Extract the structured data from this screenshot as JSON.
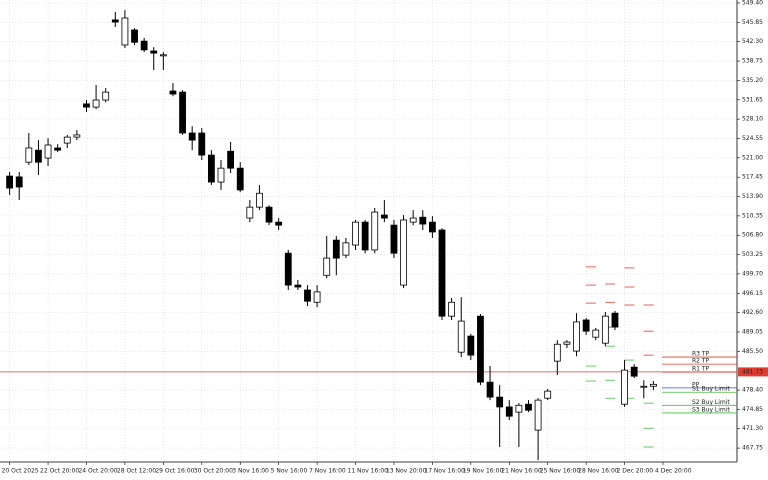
{
  "chart_data": {
    "type": "candlestick",
    "xlim": [
      -1,
      75.7
    ],
    "ylim": [
      465.2,
      549.95
    ],
    "grid": true,
    "bull_color": "#ffffff",
    "bear_color": "#000000",
    "xticks": [
      {
        "value": 0,
        "label": "20 Oct 2025"
      },
      {
        "value": 4,
        "label": "22 Oct 20:00"
      },
      {
        "value": 8,
        "label": "24 Oct 20:00"
      },
      {
        "value": 12,
        "label": "28 Oct 12:00"
      },
      {
        "value": 16,
        "label": "29 Oct 16:00"
      },
      {
        "value": 20,
        "label": "30 Oct 20:00"
      },
      {
        "value": 24,
        "label": "3 Nov 16:00"
      },
      {
        "value": 28,
        "label": "5 Nov 16:00"
      },
      {
        "value": 32,
        "label": "7 Nov 16:00"
      },
      {
        "value": 36,
        "label": "11 Nov 16:00"
      },
      {
        "value": 40,
        "label": "13 Nov 20:00"
      },
      {
        "value": 44,
        "label": "17 Nov 16:00"
      },
      {
        "value": 48,
        "label": "19 Nov 16:00"
      },
      {
        "value": 52,
        "label": "21 Nov 16:00"
      },
      {
        "value": 56,
        "label": "25 Nov 16:00"
      },
      {
        "value": 60,
        "label": "28 Nov 16:00"
      },
      {
        "value": 64,
        "label": "2 Dec 20:00"
      },
      {
        "value": 68,
        "label": "4 Dec 20:00"
      }
    ],
    "yticks": [
      {
        "value": 549.4,
        "label": "549.40"
      },
      {
        "value": 545.85,
        "label": "545.85"
      },
      {
        "value": 542.3,
        "label": "542.30"
      },
      {
        "value": 538.75,
        "label": "538.75"
      },
      {
        "value": 535.2,
        "label": "535.20"
      },
      {
        "value": 531.65,
        "label": "531.65"
      },
      {
        "value": 528.1,
        "label": "528.10"
      },
      {
        "value": 524.55,
        "label": "524.55"
      },
      {
        "value": 521,
        "label": "521.00"
      },
      {
        "value": 517.45,
        "label": "517.45"
      },
      {
        "value": 513.9,
        "label": "513.90"
      },
      {
        "value": 510.35,
        "label": "510.35"
      },
      {
        "value": 506.8,
        "label": "506.80"
      },
      {
        "value": 503.25,
        "label": "503.25"
      },
      {
        "value": 499.7,
        "label": "499.70"
      },
      {
        "value": 496.15,
        "label": "496.15"
      },
      {
        "value": 492.6,
        "label": "492.60"
      },
      {
        "value": 489.05,
        "label": "489.05"
      },
      {
        "value": 485.5,
        "label": "485.50"
      },
      {
        "value": 478.4,
        "label": "478.40"
      },
      {
        "value": 474.85,
        "label": "474.85"
      },
      {
        "value": 471.3,
        "label": "471.30"
      },
      {
        "value": 467.75,
        "label": "467.75"
      }
    ],
    "x": [
      0,
      1,
      2,
      3,
      4,
      5,
      6,
      7,
      8,
      9,
      10,
      11,
      12,
      13,
      14,
      15,
      16,
      17,
      18,
      19,
      20,
      21,
      22,
      23,
      24,
      25,
      26,
      27,
      28,
      29,
      30,
      31,
      32,
      33,
      34,
      35,
      36,
      37,
      38,
      39,
      40,
      41,
      42,
      43,
      44,
      45,
      46,
      47,
      48,
      49,
      50,
      51,
      52,
      53,
      54,
      55,
      56,
      57,
      58,
      59,
      60,
      61,
      62,
      63,
      64,
      65,
      66,
      67
    ],
    "open": [
      517.65,
      517.5,
      520.2,
      522.4,
      520.95,
      522.8,
      523.7,
      524.8,
      530.9,
      530.3,
      531.6,
      546.3,
      541.7,
      544.45,
      542.4,
      540.6,
      539.7,
      533.25,
      533.05,
      525.55,
      525.55,
      521.5,
      516.55,
      522.2,
      519.1,
      509.95,
      511.95,
      511.95,
      509.2,
      503.5,
      497.65,
      496.75,
      494.5,
      499.45,
      505.9,
      503.15,
      505.0,
      509.2,
      504.1,
      510.5,
      508.65,
      497.65,
      509.2,
      510.1,
      509.2,
      507.75,
      491.95,
      485.35,
      488.3,
      491.95,
      479.85,
      477.1,
      475.3,
      474.35,
      475.8,
      471.05,
      476.9,
      483.7,
      486.8,
      485.55,
      491.25,
      488.1,
      487.0,
      492.5,
      475.8,
      482.6,
      479.1,
      479.1
    ],
    "high": [
      518.4,
      518.4,
      525.55,
      524.25,
      524.6,
      523.5,
      525.2,
      526.1,
      531.6,
      534.35,
      533.8,
      547.75,
      548.1,
      544.8,
      543.0,
      541.3,
      540.4,
      534.7,
      533.4,
      526.8,
      526.45,
      522.4,
      520.6,
      523.9,
      520.2,
      513.25,
      516.0,
      512.3,
      509.95,
      504.1,
      498.6,
      497.65,
      497.65,
      506.65,
      506.65,
      506.3,
      509.6,
      509.6,
      511.8,
      513.25,
      509.6,
      510.5,
      511.4,
      511.4,
      510.3,
      508.1,
      495.3,
      495.45,
      488.7,
      492.35,
      482.8,
      479.3,
      476.55,
      476.0,
      476.55,
      476.9,
      478.6,
      487.55,
      487.55,
      492.5,
      491.6,
      489.8,
      492.7,
      492.9,
      483.9,
      483.15,
      480.2,
      480.05
    ],
    "low": [
      514.2,
      513.25,
      519.7,
      517.85,
      519.5,
      522.05,
      522.8,
      524.25,
      529.4,
      529.95,
      531.2,
      545.0,
      541.15,
      541.7,
      540.4,
      537.1,
      537.1,
      532.3,
      525.2,
      522.4,
      520.6,
      516.0,
      515.1,
      518.2,
      514.7,
      509.2,
      511.4,
      508.65,
      507.75,
      496.75,
      496.75,
      493.8,
      493.6,
      498.9,
      499.45,
      502.6,
      504.1,
      503.5,
      503.5,
      509.2,
      502.6,
      497.1,
      508.65,
      507.75,
      506.3,
      491.25,
      491.25,
      484.45,
      483.9,
      479.3,
      476.55,
      467.95,
      472.9,
      467.95,
      474.35,
      465.55,
      476.55,
      481.15,
      486.1,
      484.6,
      488.5,
      487.55,
      486.45,
      489.4,
      475.3,
      480.6,
      476.9,
      478.4
    ],
    "close": [
      515.45,
      515.65,
      522.8,
      520.2,
      523.35,
      522.4,
      524.8,
      525.2,
      530.3,
      531.6,
      533.05,
      545.9,
      546.65,
      542.2,
      540.8,
      540.2,
      539.9,
      532.7,
      525.55,
      524.25,
      521.5,
      516.55,
      519.1,
      519.1,
      515.1,
      511.95,
      514.5,
      509.2,
      508.65,
      497.65,
      497.3,
      494.7,
      496.4,
      502.6,
      502.6,
      505.4,
      509.2,
      504.1,
      511.05,
      509.95,
      503.5,
      509.6,
      509.95,
      508.85,
      507.4,
      491.95,
      494.5,
      491.05,
      484.8,
      479.85,
      477.1,
      475.3,
      473.6,
      475.6,
      474.7,
      476.55,
      478.2,
      486.8,
      487.2,
      490.9,
      489.2,
      489.4,
      491.95,
      489.95,
      482.05,
      480.95,
      479.1,
      479.45
    ],
    "pivot_colors": {
      "resistance": "#e03c31",
      "pivot": "#3050e0",
      "support": "#40c040"
    },
    "pivot_history": [
      {
        "x": 60.5,
        "resistance": [
          501.0,
          497.65,
          494.35
        ],
        "pivot": [],
        "support": [
          482.8,
          480.05
        ]
      },
      {
        "x": 62.5,
        "resistance": [
          497.85,
          494.5
        ],
        "pivot": [
          489.95
        ],
        "support": [
          486.45,
          480.2,
          476.9
        ]
      },
      {
        "x": 64.5,
        "resistance": [
          500.8,
          497.3,
          494.0
        ],
        "pivot": [],
        "support": [
          483.9,
          476.9
        ]
      },
      {
        "x": 66.5,
        "resistance": [
          494.0,
          489.2,
          484.8
        ],
        "pivot": [],
        "support": [
          476.0,
          471.4,
          467.95
        ]
      }
    ],
    "levels": [
      {
        "name": "R3 TP",
        "value": 484.45,
        "color": "#e03c31"
      },
      {
        "name": "R2 TP",
        "value": 483.15,
        "color": "#e03c31"
      },
      {
        "name": "R1 TP",
        "value": 481.7,
        "color": "#e03c31"
      },
      {
        "name": "PP",
        "value": 478.8,
        "color": "#3050e0"
      },
      {
        "name": "S1 Buy Limit",
        "value": 478.0,
        "color": "#40c040"
      },
      {
        "name": "S2 Buy Limit",
        "value": 475.6,
        "color": "#40c040"
      },
      {
        "name": "S3 Buy Limit",
        "value": 474.2,
        "color": "#40c040"
      }
    ],
    "current_price": {
      "value": 481.73,
      "color": "#e03c31"
    }
  }
}
